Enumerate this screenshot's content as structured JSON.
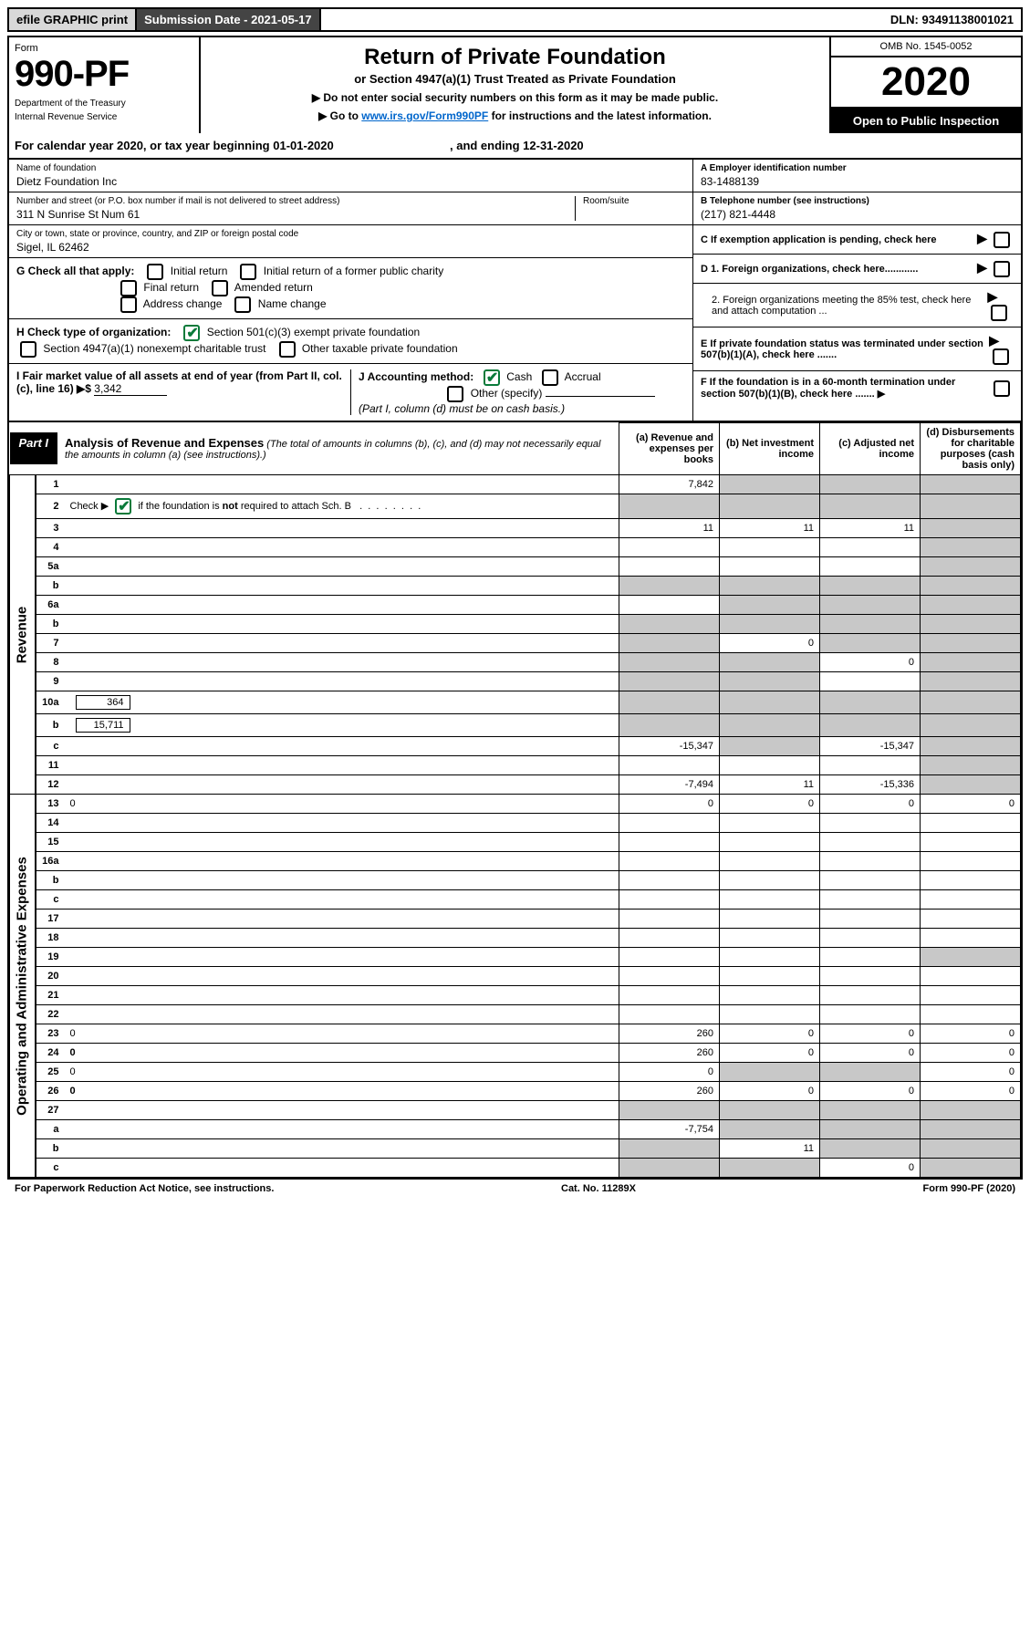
{
  "topbar": {
    "efile": "efile GRAPHIC print",
    "submission": "Submission Date - 2021-05-17",
    "dln": "DLN: 93491138001021"
  },
  "header": {
    "form": "Form",
    "code": "990-PF",
    "dept": "Department of the Treasury",
    "irs": "Internal Revenue Service",
    "title": "Return of Private Foundation",
    "subtitle": "or Section 4947(a)(1) Trust Treated as Private Foundation",
    "note1": "▶ Do not enter social security numbers on this form as it may be made public.",
    "note2": "▶ Go to ",
    "link": "www.irs.gov/Form990PF",
    "note2b": " for instructions and the latest information.",
    "omb": "OMB No. 1545-0052",
    "year": "2020",
    "open": "Open to Public Inspection"
  },
  "calyear": {
    "prefix": "For calendar year 2020, or tax year beginning ",
    "begin": "01-01-2020",
    "mid": " , and ending ",
    "end": "12-31-2020"
  },
  "foundation": {
    "name_label": "Name of foundation",
    "name": "Dietz Foundation Inc",
    "addr_label": "Number and street (or P.O. box number if mail is not delivered to street address)",
    "addr": "311 N Sunrise St Num 61",
    "room_label": "Room/suite",
    "city_label": "City or town, state or province, country, and ZIP or foreign postal code",
    "city": "Sigel, IL  62462",
    "ein_label": "A Employer identification number",
    "ein": "83-1488139",
    "phone_label": "B Telephone number (see instructions)",
    "phone": "(217) 821-4448"
  },
  "checks": {
    "G": "G Check all that apply:",
    "initial": "Initial return",
    "initial_former": "Initial return of a former public charity",
    "final": "Final return",
    "amended": "Amended return",
    "address": "Address change",
    "name": "Name change",
    "H": "H Check type of organization:",
    "sec501": "Section 501(c)(3) exempt private foundation",
    "sec4947": "Section 4947(a)(1) nonexempt charitable trust",
    "other_pf": "Other taxable private foundation",
    "I": "I Fair market value of all assets at end of year (from Part II, col. (c), line 16) ▶$",
    "I_val": "3,342",
    "J": "J Accounting method:",
    "cash": "Cash",
    "accrual": "Accrual",
    "other_spec": "Other (specify)",
    "J_note": "(Part I, column (d) must be on cash basis.)"
  },
  "right": {
    "C": "C If exemption application is pending, check here",
    "D1": "D 1. Foreign organizations, check here............",
    "D2": "2. Foreign organizations meeting the 85% test, check here and attach computation ...",
    "E": "E  If private foundation status was terminated under section 507(b)(1)(A), check here .......",
    "F": "F  If the foundation is in a 60-month termination under section 507(b)(1)(B), check here .......  ▶"
  },
  "part1": {
    "tag": "Part I",
    "title": "Analysis of Revenue and Expenses",
    "note": " (The total of amounts in columns (b), (c), and (d) may not necessarily equal the amounts in column (a) (see instructions).)",
    "cols": {
      "a": "(a) Revenue and expenses per books",
      "b": "(b) Net investment income",
      "c": "(c) Adjusted net income",
      "d": "(d) Disbursements for charitable purposes (cash basis only)"
    }
  },
  "rows": [
    {
      "n": "1",
      "d": "",
      "a": "7,842",
      "b": "",
      "c": "",
      "sa": false,
      "sb": true,
      "sc": true,
      "sd": true
    },
    {
      "n": "2",
      "d": "",
      "a": "",
      "b": "",
      "c": "",
      "sa": true,
      "sb": true,
      "sc": true,
      "sd": true,
      "checked": true
    },
    {
      "n": "3",
      "d": "",
      "a": "11",
      "b": "11",
      "c": "11",
      "sa": false,
      "sb": false,
      "sc": false,
      "sd": true
    },
    {
      "n": "4",
      "d": "",
      "a": "",
      "b": "",
      "c": "",
      "sa": false,
      "sb": false,
      "sc": false,
      "sd": true
    },
    {
      "n": "5a",
      "d": "",
      "a": "",
      "b": "",
      "c": "",
      "sa": false,
      "sb": false,
      "sc": false,
      "sd": true
    },
    {
      "n": "b",
      "d": "",
      "a": "",
      "b": "",
      "c": "",
      "sa": true,
      "sb": true,
      "sc": true,
      "sd": true
    },
    {
      "n": "6a",
      "d": "",
      "a": "",
      "b": "",
      "c": "",
      "sa": false,
      "sb": true,
      "sc": true,
      "sd": true
    },
    {
      "n": "b",
      "d": "",
      "a": "",
      "b": "",
      "c": "",
      "sa": true,
      "sb": true,
      "sc": true,
      "sd": true
    },
    {
      "n": "7",
      "d": "",
      "a": "",
      "b": "0",
      "c": "",
      "sa": true,
      "sb": false,
      "sc": true,
      "sd": true
    },
    {
      "n": "8",
      "d": "",
      "a": "",
      "b": "",
      "c": "0",
      "sa": true,
      "sb": true,
      "sc": false,
      "sd": true
    },
    {
      "n": "9",
      "d": "",
      "a": "",
      "b": "",
      "c": "",
      "sa": true,
      "sb": true,
      "sc": false,
      "sd": true
    },
    {
      "n": "10a",
      "d": "",
      "inner": "364",
      "a": "",
      "b": "",
      "c": "",
      "sa": true,
      "sb": true,
      "sc": true,
      "sd": true
    },
    {
      "n": "b",
      "d": "",
      "inner": "15,711",
      "a": "",
      "b": "",
      "c": "",
      "sa": true,
      "sb": true,
      "sc": true,
      "sd": true
    },
    {
      "n": "c",
      "d": "",
      "a": "-15,347",
      "b": "",
      "c": "-15,347",
      "sa": false,
      "sb": true,
      "sc": false,
      "sd": true
    },
    {
      "n": "11",
      "d": "",
      "a": "",
      "b": "",
      "c": "",
      "sa": false,
      "sb": false,
      "sc": false,
      "sd": true
    },
    {
      "n": "12",
      "d": "",
      "a": "-7,494",
      "b": "11",
      "c": "-15,336",
      "sa": false,
      "sb": false,
      "sc": false,
      "sd": true,
      "bold": true
    },
    {
      "n": "13",
      "d": "0",
      "a": "0",
      "b": "0",
      "c": "0"
    },
    {
      "n": "14",
      "d": "",
      "a": "",
      "b": "",
      "c": ""
    },
    {
      "n": "15",
      "d": "",
      "a": "",
      "b": "",
      "c": ""
    },
    {
      "n": "16a",
      "d": "",
      "a": "",
      "b": "",
      "c": ""
    },
    {
      "n": "b",
      "d": "",
      "a": "",
      "b": "",
      "c": ""
    },
    {
      "n": "c",
      "d": "",
      "a": "",
      "b": "",
      "c": ""
    },
    {
      "n": "17",
      "d": "",
      "a": "",
      "b": "",
      "c": ""
    },
    {
      "n": "18",
      "d": "",
      "a": "",
      "b": "",
      "c": ""
    },
    {
      "n": "19",
      "d": "",
      "a": "",
      "b": "",
      "c": "",
      "sd": true
    },
    {
      "n": "20",
      "d": "",
      "a": "",
      "b": "",
      "c": ""
    },
    {
      "n": "21",
      "d": "",
      "a": "",
      "b": "",
      "c": ""
    },
    {
      "n": "22",
      "d": "",
      "a": "",
      "b": "",
      "c": ""
    },
    {
      "n": "23",
      "d": "0",
      "a": "260",
      "b": "0",
      "c": "0"
    },
    {
      "n": "24",
      "d": "0",
      "a": "260",
      "b": "0",
      "c": "0",
      "bold": true
    },
    {
      "n": "25",
      "d": "0",
      "a": "0",
      "b": "",
      "c": "",
      "sb": true,
      "sc": true
    },
    {
      "n": "26",
      "d": "0",
      "a": "260",
      "b": "0",
      "c": "0",
      "bold": true
    },
    {
      "n": "27",
      "d": "",
      "a": "",
      "b": "",
      "c": "",
      "sa": true,
      "sb": true,
      "sc": true,
      "sd": true
    },
    {
      "n": "a",
      "d": "",
      "a": "-7,754",
      "b": "",
      "c": "",
      "sb": true,
      "sc": true,
      "sd": true,
      "bold": true
    },
    {
      "n": "b",
      "d": "",
      "a": "",
      "b": "11",
      "c": "",
      "sa": true,
      "sc": true,
      "sd": true,
      "bold": true
    },
    {
      "n": "c",
      "d": "",
      "a": "",
      "b": "",
      "c": "0",
      "sa": true,
      "sb": true,
      "sd": true,
      "bold": true
    }
  ],
  "sections": {
    "revenue": "Revenue",
    "expenses": "Operating and Administrative Expenses"
  },
  "footer": {
    "left": "For Paperwork Reduction Act Notice, see instructions.",
    "mid": "Cat. No. 11289X",
    "right": "Form 990-PF (2020)"
  }
}
